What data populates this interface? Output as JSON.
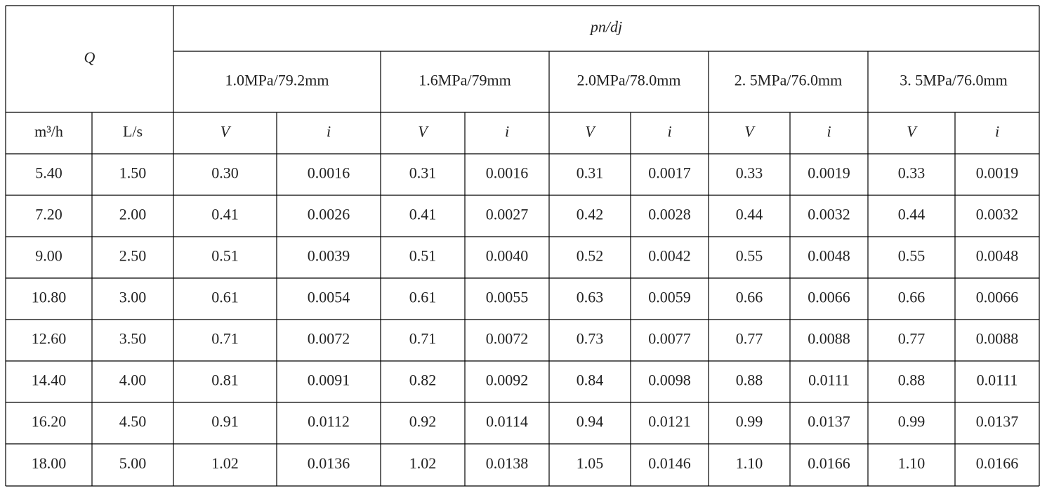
{
  "header": {
    "q": "Q",
    "pn_dj": "pn/dj",
    "groups": [
      "1.0MPa/79.2mm",
      "1.6MPa/79mm",
      "2.0MPa/78.0mm",
      "2. 5MPa/76.0mm",
      "3. 5MPa/76.0mm"
    ],
    "units": [
      "m³/h",
      "L/s"
    ],
    "columns": [
      "V",
      "i",
      "V",
      "i",
      "V",
      "i",
      "V",
      "i",
      "V",
      "i"
    ]
  },
  "table": {
    "rows": [
      [
        "5.40",
        "1.50",
        "0.30",
        "0.0016",
        "0.31",
        "0.0016",
        "0.31",
        "0.0017",
        "0.33",
        "0.0019",
        "0.33",
        "0.0019"
      ],
      [
        "7.20",
        "2.00",
        "0.41",
        "0.0026",
        "0.41",
        "0.0027",
        "0.42",
        "0.0028",
        "0.44",
        "0.0032",
        "0.44",
        "0.0032"
      ],
      [
        "9.00",
        "2.50",
        "0.51",
        "0.0039",
        "0.51",
        "0.0040",
        "0.52",
        "0.0042",
        "0.55",
        "0.0048",
        "0.55",
        "0.0048"
      ],
      [
        "10.80",
        "3.00",
        "0.61",
        "0.0054",
        "0.61",
        "0.0055",
        "0.63",
        "0.0059",
        "0.66",
        "0.0066",
        "0.66",
        "0.0066"
      ],
      [
        "12.60",
        "3.50",
        "0.71",
        "0.0072",
        "0.71",
        "0.0072",
        "0.73",
        "0.0077",
        "0.77",
        "0.0088",
        "0.77",
        "0.0088"
      ],
      [
        "14.40",
        "4.00",
        "0.81",
        "0.0091",
        "0.82",
        "0.0092",
        "0.84",
        "0.0098",
        "0.88",
        "0.0111",
        "0.88",
        "0.0111"
      ],
      [
        "16.20",
        "4.50",
        "0.91",
        "0.0112",
        "0.92",
        "0.0114",
        "0.94",
        "0.0121",
        "0.99",
        "0.0137",
        "0.99",
        "0.0137"
      ],
      [
        "18.00",
        "5.00",
        "1.02",
        "0.0136",
        "1.02",
        "0.0138",
        "1.05",
        "0.0146",
        "1.10",
        "0.0166",
        "1.10",
        "0.0166"
      ]
    ]
  }
}
